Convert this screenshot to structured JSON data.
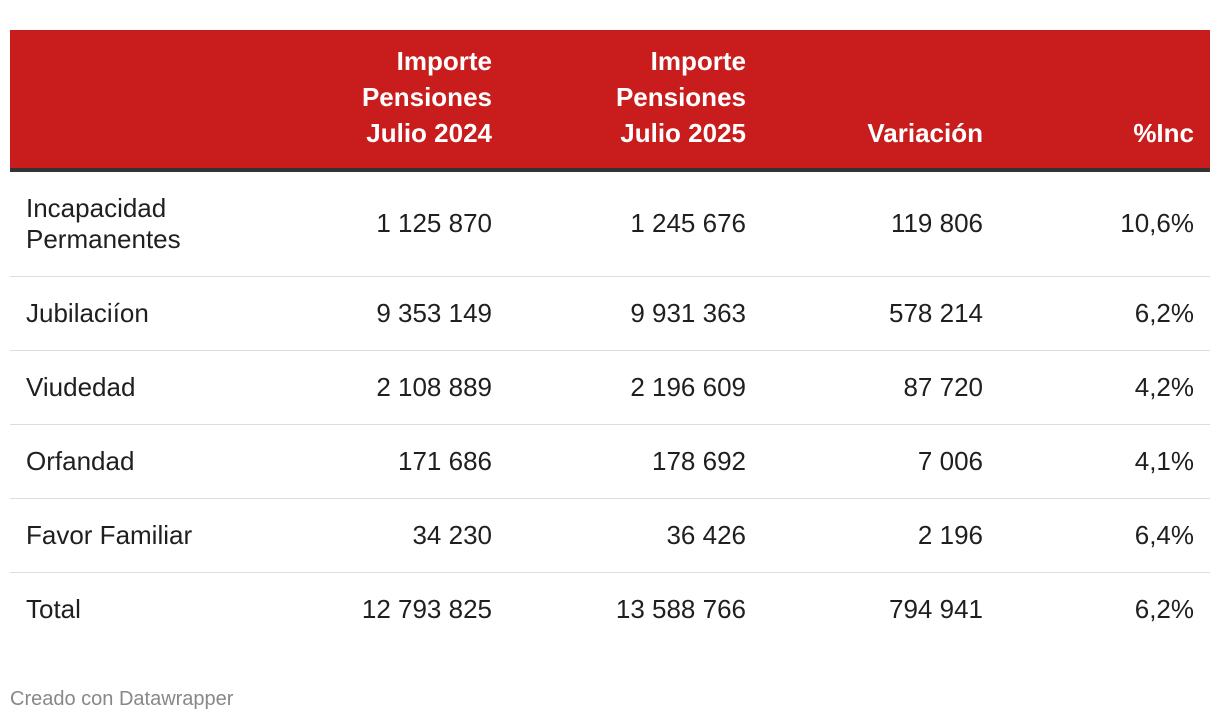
{
  "table": {
    "headers": [
      "",
      "Importe\nPensiones\nJulio 2024",
      "Importe\nPensiones\nJulio 2025",
      "Variación",
      "%Inc"
    ],
    "rows": [
      {
        "label": "Incapacidad Permanentes",
        "v2024": "1 125 870",
        "v2025": "1 245 676",
        "variacion": "119 806",
        "inc": "10,6%"
      },
      {
        "label": "Jubilaciíon",
        "v2024": "9 353 149",
        "v2025": "9 931 363",
        "variacion": "578 214",
        "inc": "6,2%"
      },
      {
        "label": "Viudedad",
        "v2024": "2 108 889",
        "v2025": "2 196 609",
        "variacion": "87 720",
        "inc": "4,2%"
      },
      {
        "label": "Orfandad",
        "v2024": "171 686",
        "v2025": "178 692",
        "variacion": "7 006",
        "inc": "4,1%"
      },
      {
        "label": "Favor Familiar",
        "v2024": "34 230",
        "v2025": "36 426",
        "variacion": "2 196",
        "inc": "6,4%"
      },
      {
        "label": "Total",
        "v2024": "12 793 825",
        "v2025": "13 588 766",
        "variacion": "794 941",
        "inc": "6,2%"
      }
    ]
  },
  "footer": {
    "credit": "Creado con Datawrapper"
  },
  "colors": {
    "header_bg": "#c81d1c",
    "header_text": "#ffffff",
    "header_rule": "#333333",
    "row_rule": "#dddddd",
    "footer_text": "#888888"
  }
}
